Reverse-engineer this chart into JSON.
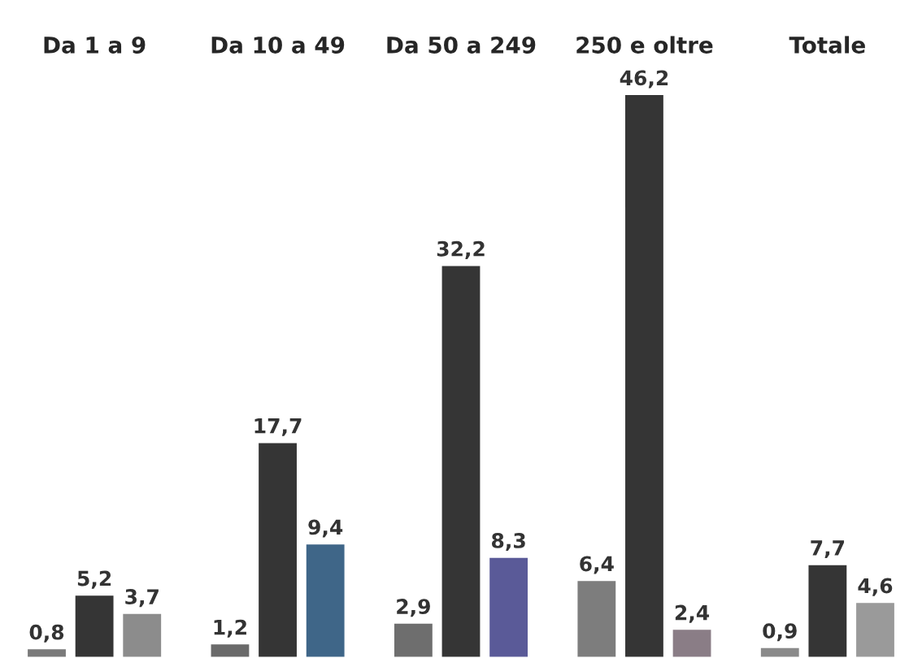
{
  "chart_data": {
    "type": "bar",
    "categories": [
      "Da 1 a 9",
      "Da 10 a 49",
      "Da 50 a 249",
      "250 e oltre",
      "Totale"
    ],
    "series": [
      {
        "colors": [
          "#7a7a7a",
          "#6a6a6a",
          "#6e6e6e",
          "#7d7d7d",
          "#8a8a8a"
        ],
        "values": [
          0.8,
          1.2,
          2.9,
          6.4,
          0.9
        ],
        "value_labels": [
          "0,8",
          "1,2",
          "2,9",
          "6,4",
          "0,9"
        ]
      },
      {
        "color": "#353535",
        "values": [
          5.2,
          17.7,
          32.2,
          46.2,
          7.7
        ],
        "value_labels": [
          "5,2",
          "17,7",
          "32,2",
          "46,2",
          "7,7"
        ]
      },
      {
        "colors": [
          "#8c8c8c",
          "#3f6688",
          "#5a5a98",
          "#8a7d86",
          "#9a9a9a"
        ],
        "values": [
          3.7,
          9.4,
          8.3,
          2.4,
          4.6
        ],
        "value_labels": [
          "3,7",
          "9,4",
          "8,3",
          "2,4",
          "4,6"
        ]
      }
    ],
    "data_labels": true,
    "tick_labels": "x",
    "grid": false,
    "legend": false
  }
}
